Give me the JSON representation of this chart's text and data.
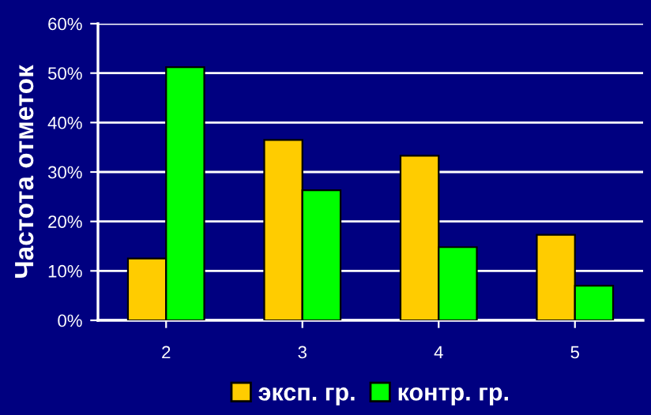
{
  "chart_data": {
    "type": "bar",
    "ylabel": "Частота отметок",
    "categories": [
      "2",
      "3",
      "4",
      "5"
    ],
    "series": [
      {
        "name": "эксп. гр.",
        "color": "#ffcc00",
        "values": [
          12.5,
          36.5,
          33.3,
          17.3
        ]
      },
      {
        "name": "контр. гр.",
        "color": "#00ff00",
        "values": [
          51.2,
          26.3,
          14.8,
          7.0
        ]
      }
    ],
    "ylim": [
      0,
      60
    ],
    "yticks": [
      {
        "value": 0,
        "label": "0%"
      },
      {
        "value": 10,
        "label": "10%"
      },
      {
        "value": 20,
        "label": "20%"
      },
      {
        "value": 30,
        "label": "30%"
      },
      {
        "value": 40,
        "label": "40%"
      },
      {
        "value": 50,
        "label": "50%"
      },
      {
        "value": 60,
        "label": "60%"
      }
    ],
    "grid": "y",
    "legend": "bottom"
  }
}
